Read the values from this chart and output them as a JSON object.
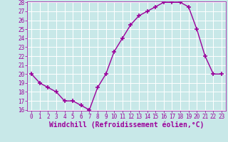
{
  "x": [
    0,
    1,
    2,
    3,
    4,
    5,
    6,
    7,
    8,
    9,
    10,
    11,
    12,
    13,
    14,
    15,
    16,
    17,
    18,
    19,
    20,
    21,
    22,
    23
  ],
  "y": [
    20,
    19,
    18.5,
    18,
    17,
    17,
    16.5,
    16,
    18.5,
    20,
    22.5,
    24,
    25.5,
    26.5,
    27,
    27.5,
    28,
    28,
    28,
    27.5,
    25,
    22,
    20,
    20
  ],
  "line_color": "#9b009b",
  "marker": "+",
  "marker_size": 4,
  "marker_lw": 1.2,
  "bg_color": "#c8e8e8",
  "grid_color": "#b0d8d8",
  "xlabel": "Windchill (Refroidissement éolien,°C)",
  "ylim": [
    16,
    28
  ],
  "xlim": [
    -0.5,
    23.5
  ],
  "yticks": [
    16,
    17,
    18,
    19,
    20,
    21,
    22,
    23,
    24,
    25,
    26,
    27,
    28
  ],
  "xticks": [
    0,
    1,
    2,
    3,
    4,
    5,
    6,
    7,
    8,
    9,
    10,
    11,
    12,
    13,
    14,
    15,
    16,
    17,
    18,
    19,
    20,
    21,
    22,
    23
  ],
  "tick_fontsize": 5.5,
  "xlabel_fontsize": 7.0,
  "linewidth": 1.0
}
